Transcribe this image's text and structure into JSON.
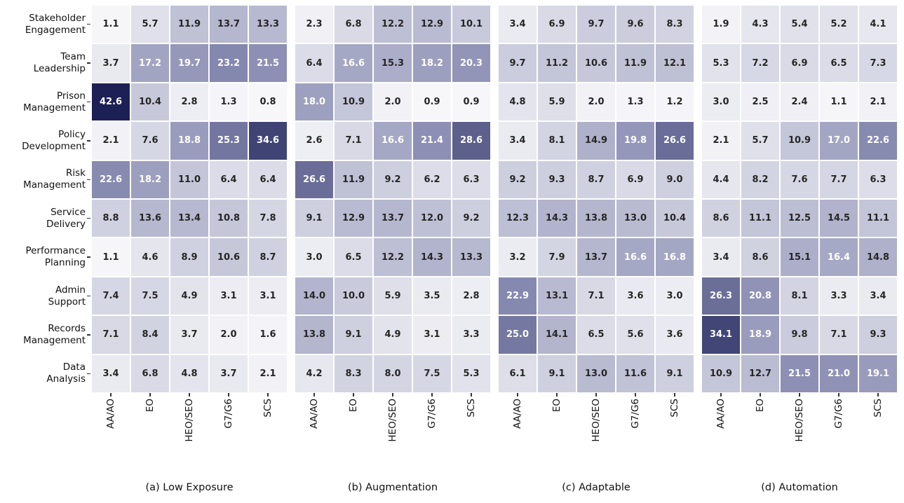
{
  "chart_data": {
    "type": "heatmap",
    "title": "",
    "xlabel": "",
    "ylabel": "",
    "grid": "white cell separators",
    "legend": "none",
    "columns": [
      "AA/AO",
      "EO",
      "HEO/SEO",
      "G7/G6",
      "SCS"
    ],
    "row_labels": [
      [
        "Stakeholder",
        "Engagement"
      ],
      [
        "Team",
        "Leadership"
      ],
      [
        "Prison",
        "Management"
      ],
      [
        "Policy",
        "Development"
      ],
      [
        "Risk",
        "Management"
      ],
      [
        "Service",
        "Delivery"
      ],
      [
        "Performance",
        "Planning"
      ],
      [
        "Admin",
        "Support"
      ],
      [
        "Records",
        "Management"
      ],
      [
        "Data",
        "Analysis"
      ]
    ],
    "panels": [
      {
        "caption": "(a) Low Exposure",
        "values": [
          [
            1.1,
            5.7,
            11.9,
            13.7,
            13.3
          ],
          [
            3.7,
            17.2,
            19.7,
            23.2,
            21.5
          ],
          [
            42.6,
            10.4,
            2.8,
            1.3,
            0.8
          ],
          [
            2.1,
            7.6,
            18.8,
            25.3,
            34.6
          ],
          [
            22.6,
            18.2,
            11.0,
            6.4,
            6.4
          ],
          [
            8.8,
            13.6,
            13.4,
            10.8,
            7.8
          ],
          [
            1.1,
            4.6,
            8.9,
            10.6,
            8.7
          ],
          [
            7.4,
            7.5,
            4.9,
            3.1,
            3.1
          ],
          [
            7.1,
            8.4,
            3.7,
            2.0,
            1.6
          ],
          [
            3.4,
            6.8,
            4.8,
            3.7,
            2.1
          ]
        ]
      },
      {
        "caption": "(b) Augmentation",
        "values": [
          [
            2.3,
            6.8,
            12.2,
            12.9,
            10.1
          ],
          [
            6.4,
            16.6,
            15.3,
            18.2,
            20.3
          ],
          [
            18.0,
            10.9,
            2.0,
            0.9,
            0.9
          ],
          [
            2.6,
            7.1,
            16.6,
            21.4,
            28.6
          ],
          [
            26.6,
            11.9,
            9.2,
            6.2,
            6.3
          ],
          [
            9.1,
            12.9,
            13.7,
            12.0,
            9.2
          ],
          [
            3.0,
            6.5,
            12.2,
            14.3,
            13.3
          ],
          [
            14.0,
            10.0,
            5.9,
            3.5,
            2.8
          ],
          [
            13.8,
            9.1,
            4.9,
            3.1,
            3.3
          ],
          [
            4.2,
            8.3,
            8.0,
            7.5,
            5.3
          ]
        ]
      },
      {
        "caption": "(c) Adaptable",
        "values": [
          [
            3.4,
            6.9,
            9.7,
            9.6,
            8.3
          ],
          [
            9.7,
            11.2,
            10.6,
            11.9,
            12.1
          ],
          [
            4.8,
            5.9,
            2.0,
            1.3,
            1.2
          ],
          [
            3.4,
            8.1,
            14.9,
            19.8,
            26.6
          ],
          [
            9.2,
            9.3,
            8.7,
            6.9,
            9.0
          ],
          [
            12.3,
            14.3,
            13.8,
            13.0,
            10.4
          ],
          [
            3.2,
            7.9,
            13.7,
            16.6,
            16.8
          ],
          [
            22.9,
            13.1,
            7.1,
            3.6,
            3.0
          ],
          [
            25.0,
            14.1,
            6.5,
            5.6,
            3.6
          ],
          [
            6.1,
            9.1,
            13.0,
            11.6,
            9.1
          ]
        ]
      },
      {
        "caption": "(d) Automation",
        "values": [
          [
            1.9,
            4.3,
            5.4,
            5.2,
            4.1
          ],
          [
            5.3,
            7.2,
            6.9,
            6.5,
            7.3
          ],
          [
            3.0,
            2.5,
            2.4,
            1.1,
            2.1
          ],
          [
            2.1,
            5.7,
            10.9,
            17.0,
            22.6
          ],
          [
            4.4,
            8.2,
            7.6,
            7.7,
            6.3
          ],
          [
            8.6,
            11.1,
            12.5,
            14.5,
            11.1
          ],
          [
            3.4,
            8.6,
            15.1,
            16.4,
            14.8
          ],
          [
            26.3,
            20.8,
            8.1,
            3.3,
            3.4
          ],
          [
            34.1,
            18.9,
            9.8,
            7.1,
            9.3
          ],
          [
            10.9,
            12.7,
            21.5,
            21.0,
            19.1
          ]
        ]
      }
    ],
    "value_format": "one_decimal",
    "colormap": {
      "stops": [
        [
          0,
          "#fbfbfd"
        ],
        [
          5,
          "#e2e3ec"
        ],
        [
          10,
          "#c9cbdc"
        ],
        [
          15,
          "#aeb0ca"
        ],
        [
          20,
          "#9396b8"
        ],
        [
          23,
          "#8689af"
        ],
        [
          26,
          "#6d719a"
        ],
        [
          29,
          "#595d89"
        ],
        [
          35,
          "#3d4274"
        ],
        [
          43,
          "#1a1e52"
        ]
      ]
    },
    "annot_text_dark": "#262626",
    "annot_text_light": "#ffffff",
    "white_text_threshold": 16,
    "tick_color": "#333333"
  }
}
